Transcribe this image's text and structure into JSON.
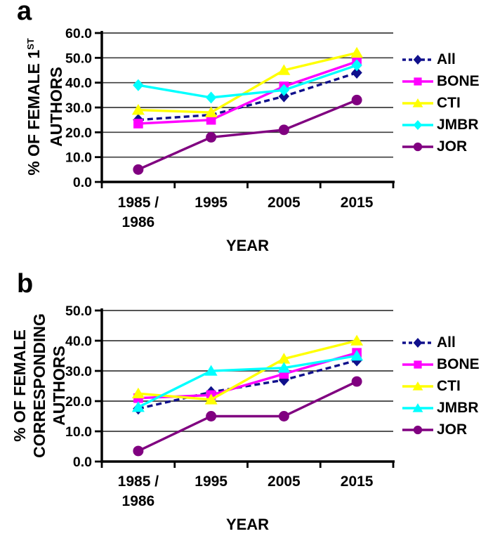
{
  "figure_colors": {
    "all": "#10108C",
    "bone": "#FF00FF",
    "cti": "#FFFF00",
    "jmbr": "#00FFFF",
    "jor": "#800080",
    "axis": "#000000",
    "gridline": "#3D3D3D"
  },
  "chart_data": [
    {
      "type": "line",
      "panel_letter": "a",
      "xlabel": "YEAR",
      "ylabel": "% OF FEMALE 1ST AUTHORS",
      "ylabel_lines": [
        {
          "text": "% OF FEMALE 1",
          "sup": "ST"
        },
        {
          "text": "AUTHORS"
        }
      ],
      "categories": [
        "1985 / 1986",
        "1995",
        "2005",
        "2015"
      ],
      "x_tick_lines": [
        [
          "1985 /",
          "1986"
        ],
        [
          "1995"
        ],
        [
          "2005"
        ],
        [
          "2015"
        ]
      ],
      "ylim": [
        0,
        60
      ],
      "ytick_step": 10,
      "ytick_labels": [
        "0.0",
        "10.0",
        "20.0",
        "30.0",
        "40.0",
        "50.0",
        "60.0"
      ],
      "grid": "horizontal",
      "legend_position": "right",
      "series": [
        {
          "name": "All",
          "color": "#10108C",
          "marker": "diamond",
          "line_style": "dashed",
          "values": [
            25.0,
            27.0,
            34.5,
            44.0
          ]
        },
        {
          "name": "BONE",
          "color": "#FF00FF",
          "marker": "square",
          "line_style": "solid",
          "values": [
            23.5,
            25.0,
            38.5,
            48.5
          ]
        },
        {
          "name": "CTI",
          "color": "#FFFF00",
          "marker": "triangle",
          "line_style": "solid",
          "values": [
            29.0,
            28.0,
            45.0,
            52.0
          ]
        },
        {
          "name": "JMBR",
          "color": "#00FFFF",
          "marker": "diamond",
          "line_style": "solid",
          "values": [
            39.0,
            34.0,
            37.0,
            47.0
          ]
        },
        {
          "name": "JOR",
          "color": "#800080",
          "marker": "circle",
          "line_style": "solid",
          "values": [
            5.0,
            18.0,
            21.0,
            33.0
          ]
        }
      ]
    },
    {
      "type": "line",
      "panel_letter": "b",
      "xlabel": "YEAR",
      "ylabel": "% OF FEMALE CORRESPONDING AUTHORS",
      "ylabel_lines": [
        {
          "text": "% OF FEMALE"
        },
        {
          "text": "CORRESPONDING"
        },
        {
          "text": "AUTHORS"
        }
      ],
      "categories": [
        "1985 / 1986",
        "1995",
        "2005",
        "2015"
      ],
      "x_tick_lines": [
        [
          "1985 /",
          "1986"
        ],
        [
          "1995"
        ],
        [
          "2005"
        ],
        [
          "2015"
        ]
      ],
      "ylim": [
        0,
        50
      ],
      "ytick_step": 10,
      "ytick_labels": [
        "0.0",
        "10.0",
        "20.0",
        "30.0",
        "40.0",
        "50.0"
      ],
      "grid": "horizontal",
      "legend_position": "right",
      "series": [
        {
          "name": "All",
          "color": "#10108C",
          "marker": "diamond",
          "line_style": "dashed",
          "values": [
            17.5,
            23.0,
            27.0,
            33.5
          ]
        },
        {
          "name": "BONE",
          "color": "#FF00FF",
          "marker": "square",
          "line_style": "solid",
          "values": [
            21.0,
            22.0,
            29.0,
            36.0
          ]
        },
        {
          "name": "CTI",
          "color": "#FFFF00",
          "marker": "triangle",
          "line_style": "solid",
          "values": [
            22.5,
            20.5,
            34.0,
            40.0
          ]
        },
        {
          "name": "JMBR",
          "color": "#00FFFF",
          "marker": "triangle",
          "line_style": "solid",
          "values": [
            18.0,
            30.0,
            31.0,
            35.0
          ]
        },
        {
          "name": "JOR",
          "color": "#800080",
          "marker": "circle",
          "line_style": "solid",
          "values": [
            3.5,
            15.0,
            15.0,
            26.5
          ]
        }
      ]
    }
  ]
}
